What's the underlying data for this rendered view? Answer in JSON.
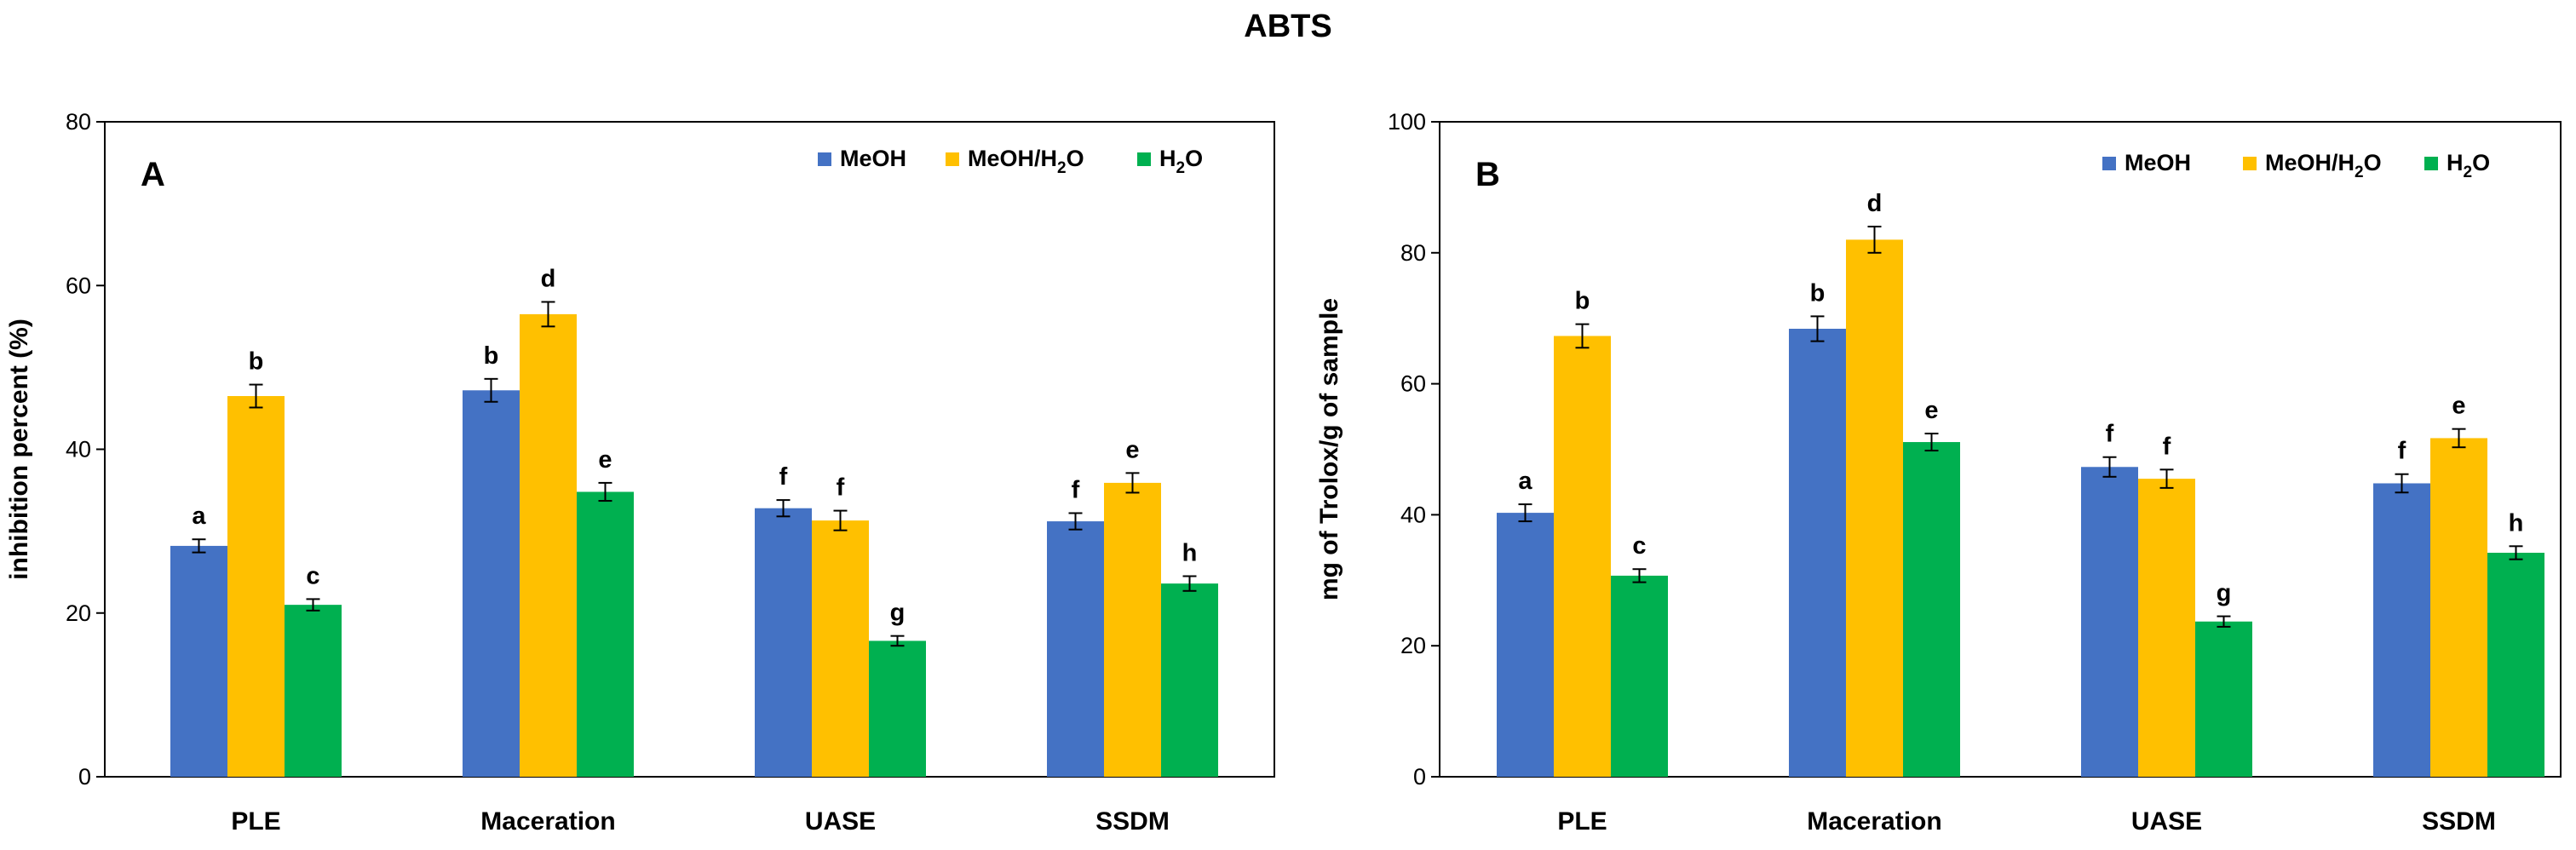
{
  "title": "ABTS",
  "chart_data": [
    {
      "type": "bar",
      "panel_label": "A",
      "ylabel": "inhibition percent (%)",
      "ylim": [
        0,
        80
      ],
      "yticks": [
        0,
        20,
        40,
        60,
        80
      ],
      "categories": [
        "PLE",
        "Maceration",
        "UASE",
        "SSDM"
      ],
      "legend_position": "top-right",
      "series": [
        {
          "name": "MeOH",
          "legend_main": "MeOH",
          "legend_sub": "",
          "legend_tail": "",
          "color": "#4472C4",
          "values": [
            28.2,
            47.2,
            32.8,
            31.2
          ],
          "errors": [
            0.8,
            1.4,
            1.0,
            1.0
          ],
          "labels": [
            "a",
            "b",
            "f",
            "f"
          ]
        },
        {
          "name": "MeOH/H2O",
          "legend_main": "MeOH/H",
          "legend_sub": "2",
          "legend_tail": "O",
          "color": "#FFC000",
          "values": [
            46.5,
            56.5,
            31.3,
            35.9
          ],
          "errors": [
            1.4,
            1.5,
            1.2,
            1.2
          ],
          "labels": [
            "b",
            "d",
            "f",
            "e"
          ]
        },
        {
          "name": "H2O",
          "legend_main": "H",
          "legend_sub": "2",
          "legend_tail": "O",
          "color": "#00B050",
          "values": [
            21.0,
            34.8,
            16.6,
            23.6
          ],
          "errors": [
            0.7,
            1.1,
            0.6,
            0.9
          ],
          "labels": [
            "c",
            "e",
            "g",
            "h"
          ]
        }
      ]
    },
    {
      "type": "bar",
      "panel_label": "B",
      "ylabel": "mg of Trolox/g of sample",
      "ylim": [
        0,
        100
      ],
      "yticks": [
        0,
        20,
        40,
        60,
        80,
        100
      ],
      "categories": [
        "PLE",
        "Maceration",
        "UASE",
        "SSDM"
      ],
      "legend_position": "top-right",
      "series": [
        {
          "name": "MeOH",
          "legend_main": "MeOH",
          "legend_sub": "",
          "legend_tail": "",
          "color": "#4472C4",
          "values": [
            40.3,
            68.4,
            47.3,
            44.8
          ],
          "errors": [
            1.3,
            1.9,
            1.5,
            1.4
          ],
          "labels": [
            "a",
            "b",
            "f",
            "f"
          ]
        },
        {
          "name": "MeOH/H2O",
          "legend_main": "MeOH/H",
          "legend_sub": "2",
          "legend_tail": "O",
          "color": "#FFC000",
          "values": [
            67.3,
            82.0,
            45.5,
            51.7
          ],
          "errors": [
            1.8,
            2.0,
            1.4,
            1.4
          ],
          "labels": [
            "b",
            "d",
            "f",
            "e"
          ]
        },
        {
          "name": "H2O",
          "legend_main": "H",
          "legend_sub": "2",
          "legend_tail": "O",
          "color": "#00B050",
          "values": [
            30.7,
            51.1,
            23.7,
            34.2
          ],
          "errors": [
            1.0,
            1.3,
            0.8,
            1.0
          ],
          "labels": [
            "c",
            "e",
            "g",
            "h"
          ]
        }
      ]
    }
  ]
}
